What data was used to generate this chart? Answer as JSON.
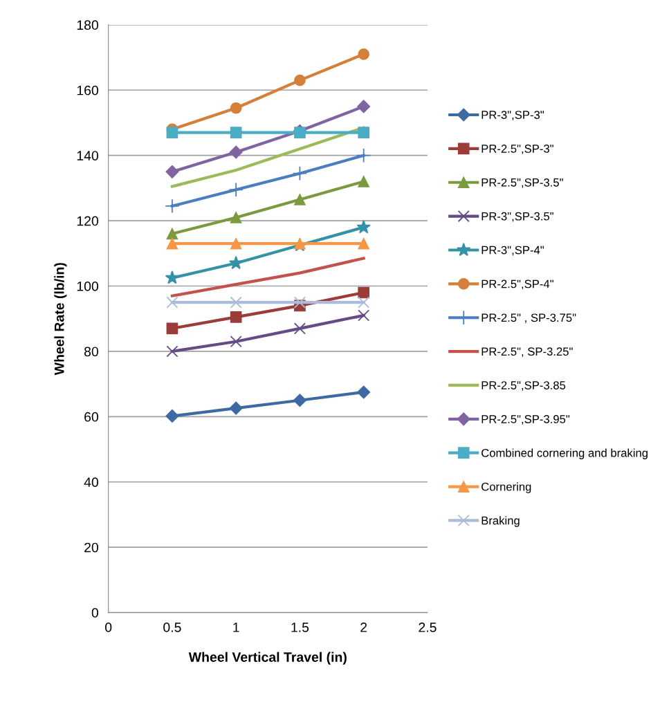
{
  "chart_data": {
    "type": "line",
    "xlabel": "Wheel Vertical Travel (in)",
    "ylabel": "Wheel Rate (lb/in)",
    "x": [
      0.5,
      1,
      1.5,
      2
    ],
    "xlim": [
      0,
      2.5
    ],
    "xticks": [
      0,
      0.5,
      1,
      1.5,
      2,
      2.5
    ],
    "ylim": [
      0,
      180
    ],
    "yticks": [
      0,
      20,
      40,
      60,
      80,
      100,
      120,
      140,
      160,
      180
    ],
    "grid": "y",
    "legend": "right",
    "line_style": "solid",
    "series": [
      {
        "name": "PR-3\",SP-3\"",
        "color": "#3e6aa2",
        "marker": "diamond",
        "values": [
          60.2,
          62.6,
          65,
          67.5
        ]
      },
      {
        "name": "PR-2.5\",SP-3\"",
        "color": "#9c3c39",
        "marker": "square",
        "values": [
          87,
          90.5,
          94,
          98
        ]
      },
      {
        "name": "PR-2.5\",SP-3.5\"",
        "color": "#7b9a3e",
        "marker": "triangle",
        "values": [
          116,
          121,
          126.5,
          132
        ]
      },
      {
        "name": "PR-3\",SP-3.5\"",
        "color": "#654b85",
        "marker": "cross",
        "values": [
          80,
          83,
          87,
          91
        ]
      },
      {
        "name": "PR-3\",SP-4\"",
        "color": "#3592a6",
        "marker": "star",
        "values": [
          102.5,
          107,
          112.5,
          118
        ]
      },
      {
        "name": "PR-2.5\",SP-4\"",
        "color": "#d5803a",
        "marker": "circle",
        "values": [
          148,
          154.5,
          163,
          171
        ]
      },
      {
        "name": "PR-2.5\" , SP-3.75\"",
        "color": "#4a7ec0",
        "marker": "plus",
        "values": [
          124.5,
          129.5,
          134.5,
          140
        ]
      },
      {
        "name": "PR-2.5\", SP-3.25\"",
        "color": "#c4514e",
        "marker": "none",
        "values": [
          97,
          100.5,
          104,
          108.5
        ]
      },
      {
        "name": "PR-2.5\",SP-3.85",
        "color": "#9bbb59",
        "marker": "none",
        "values": [
          130.5,
          135.5,
          142,
          148.5
        ]
      },
      {
        "name": "PR-2.5\",SP-3.95\"",
        "color": "#8064a2",
        "marker": "diamond",
        "values": [
          135,
          141,
          147.5,
          155
        ]
      },
      {
        "name": "Combined cornering and braking",
        "color": "#4bacc6",
        "marker": "square",
        "values": [
          147,
          147,
          147,
          147
        ]
      },
      {
        "name": "Cornering",
        "color": "#f79646",
        "marker": "triangle",
        "values": [
          113,
          113,
          113,
          113
        ]
      },
      {
        "name": "Braking",
        "color": "#a9bcdb",
        "marker": "cross",
        "values": [
          95,
          95,
          95,
          95
        ]
      }
    ]
  }
}
